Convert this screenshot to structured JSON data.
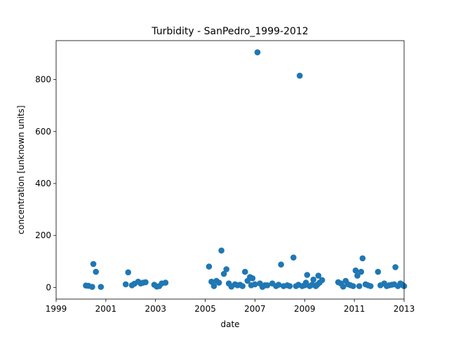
{
  "chart_data": {
    "type": "scatter",
    "title": "Turbidity - SanPedro_1999-2012",
    "xlabel": "date",
    "ylabel": "concentration [unknown units]",
    "x_ticks": [
      "1999",
      "2001",
      "2003",
      "2005",
      "2007",
      "2009",
      "2011",
      "2013"
    ],
    "y_ticks": [
      "0",
      "200",
      "400",
      "600",
      "800"
    ],
    "xlim": [
      1999,
      2013
    ],
    "ylim": [
      -45,
      950
    ],
    "grid": false,
    "marker_color": "#1f77b4",
    "x_unit": "year",
    "points": [
      [
        2000.2,
        7
      ],
      [
        2000.3,
        6
      ],
      [
        2000.45,
        2
      ],
      [
        2000.5,
        90
      ],
      [
        2000.6,
        60
      ],
      [
        2000.8,
        2
      ],
      [
        2001.8,
        12
      ],
      [
        2001.9,
        58
      ],
      [
        2002.05,
        8
      ],
      [
        2002.15,
        14
      ],
      [
        2002.3,
        22
      ],
      [
        2002.4,
        15
      ],
      [
        2002.5,
        18
      ],
      [
        2002.6,
        20
      ],
      [
        2002.95,
        10
      ],
      [
        2003.05,
        3
      ],
      [
        2003.15,
        5
      ],
      [
        2003.25,
        15
      ],
      [
        2003.4,
        18
      ],
      [
        2005.15,
        80
      ],
      [
        2005.25,
        22
      ],
      [
        2005.35,
        5
      ],
      [
        2005.45,
        25
      ],
      [
        2005.55,
        18
      ],
      [
        2005.65,
        142
      ],
      [
        2005.75,
        52
      ],
      [
        2005.85,
        70
      ],
      [
        2005.95,
        15
      ],
      [
        2006.05,
        3
      ],
      [
        2006.2,
        12
      ],
      [
        2006.3,
        8
      ],
      [
        2006.4,
        10
      ],
      [
        2006.5,
        5
      ],
      [
        2006.6,
        60
      ],
      [
        2006.7,
        25
      ],
      [
        2006.8,
        40
      ],
      [
        2006.85,
        8
      ],
      [
        2006.9,
        35
      ],
      [
        2007.0,
        12
      ],
      [
        2007.1,
        905
      ],
      [
        2007.2,
        15
      ],
      [
        2007.3,
        2
      ],
      [
        2007.4,
        8
      ],
      [
        2007.5,
        8
      ],
      [
        2007.7,
        15
      ],
      [
        2007.85,
        5
      ],
      [
        2007.95,
        10
      ],
      [
        2008.05,
        88
      ],
      [
        2008.15,
        5
      ],
      [
        2008.3,
        8
      ],
      [
        2008.4,
        5
      ],
      [
        2008.55,
        115
      ],
      [
        2008.65,
        5
      ],
      [
        2008.75,
        10
      ],
      [
        2008.8,
        815
      ],
      [
        2008.9,
        5
      ],
      [
        2009.0,
        8
      ],
      [
        2009.05,
        18
      ],
      [
        2009.1,
        48
      ],
      [
        2009.2,
        5
      ],
      [
        2009.3,
        10
      ],
      [
        2009.35,
        30
      ],
      [
        2009.45,
        5
      ],
      [
        2009.5,
        10
      ],
      [
        2009.55,
        45
      ],
      [
        2009.6,
        18
      ],
      [
        2009.7,
        28
      ],
      [
        2010.35,
        20
      ],
      [
        2010.45,
        15
      ],
      [
        2010.55,
        3
      ],
      [
        2010.65,
        25
      ],
      [
        2010.75,
        12
      ],
      [
        2010.85,
        8
      ],
      [
        2010.95,
        5
      ],
      [
        2011.05,
        65
      ],
      [
        2011.12,
        45
      ],
      [
        2011.2,
        5
      ],
      [
        2011.27,
        60
      ],
      [
        2011.33,
        112
      ],
      [
        2011.45,
        12
      ],
      [
        2011.55,
        8
      ],
      [
        2011.65,
        5
      ],
      [
        2011.95,
        60
      ],
      [
        2012.05,
        8
      ],
      [
        2012.2,
        15
      ],
      [
        2012.3,
        5
      ],
      [
        2012.4,
        8
      ],
      [
        2012.5,
        10
      ],
      [
        2012.6,
        12
      ],
      [
        2012.65,
        78
      ],
      [
        2012.75,
        5
      ],
      [
        2012.85,
        15
      ],
      [
        2012.9,
        12
      ],
      [
        2012.95,
        8
      ],
      [
        2013.0,
        5
      ]
    ]
  }
}
